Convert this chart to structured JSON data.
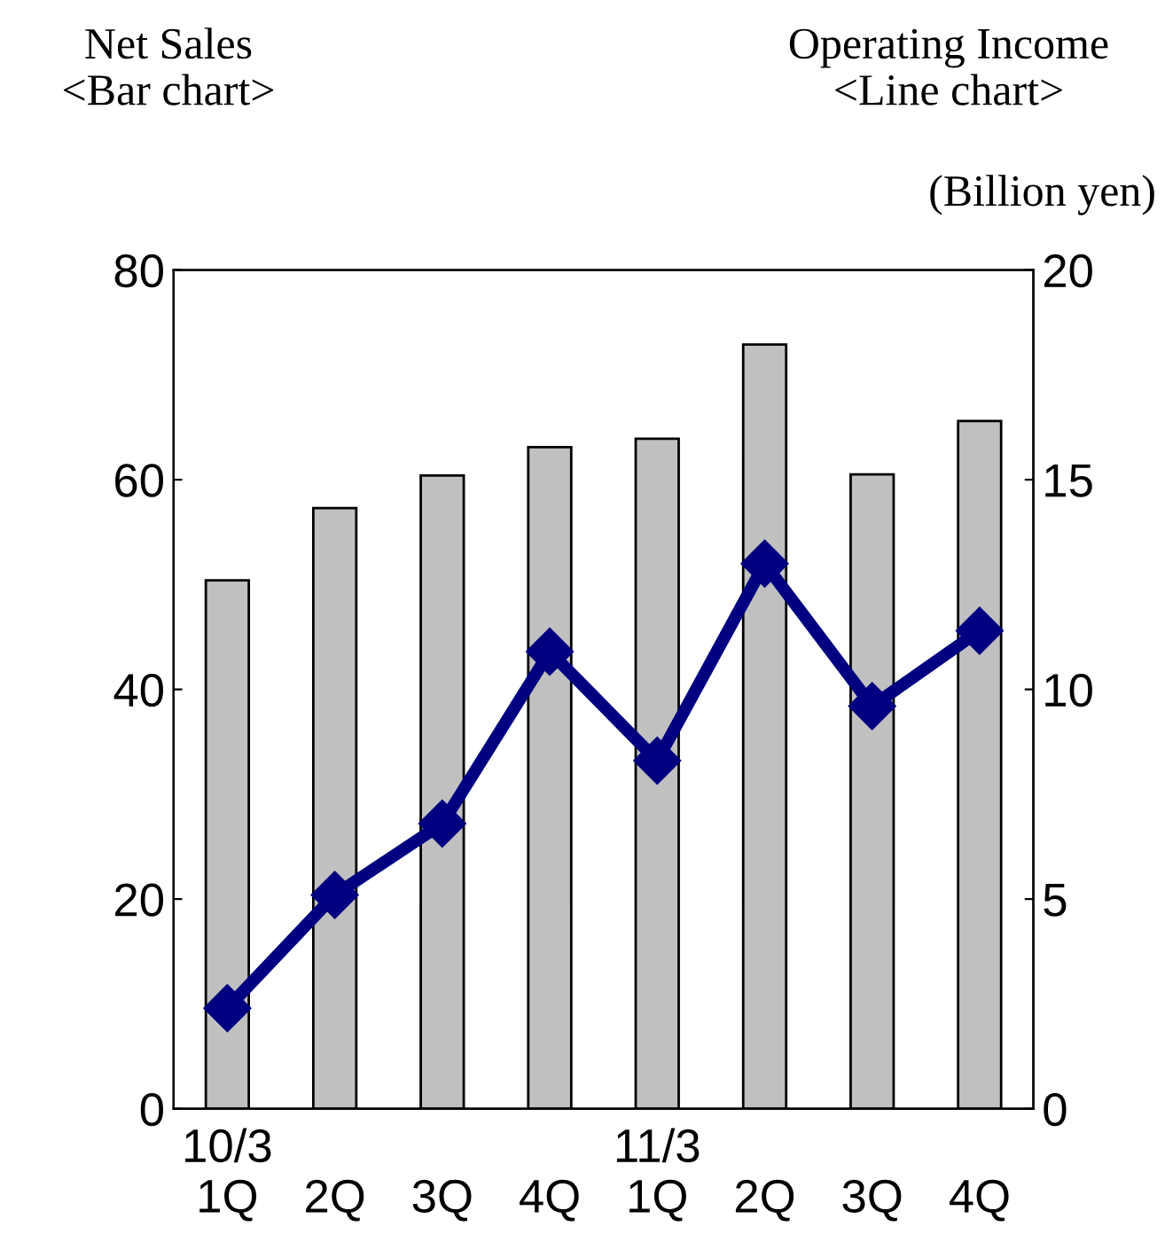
{
  "chart_data": {
    "type": "bar",
    "ylabel": "Net Sales\n<Bar chart>",
    "y2label": "Operating Income\n<Line chart>",
    "annotations": [
      "(Billion yen)"
    ],
    "categories": [
      "10/3\n1Q",
      "2Q",
      "3Q",
      "4Q",
      "11/3\n1Q",
      "2Q",
      "3Q",
      "4Q"
    ],
    "series": [
      {
        "color": "#c0c0c0",
        "values": [
          50.4,
          57.3,
          60.4,
          63.1,
          63.9,
          72.9,
          60.5,
          65.6
        ]
      },
      {
        "type": "line",
        "axis": "y2",
        "color": "#000080",
        "marker": "diamond",
        "values": [
          2.4,
          5.1,
          6.8,
          10.9,
          8.3,
          13.0,
          9.6,
          11.4
        ]
      }
    ],
    "ylim": [
      0,
      80
    ],
    "yticks": [
      0,
      20,
      40,
      60,
      80
    ],
    "y2lim": [
      0,
      20
    ],
    "y2ticks": [
      0,
      5,
      10,
      15,
      20
    ],
    "grid": false,
    "legend": false
  }
}
